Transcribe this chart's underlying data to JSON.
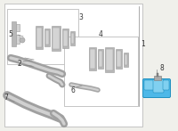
{
  "bg_color": "#f0f0eb",
  "white": "#ffffff",
  "border_color": "#bbbbbb",
  "part_gray_dark": "#999999",
  "part_gray_mid": "#b8b8b8",
  "part_gray_light": "#d4d4d4",
  "highlight_blue": "#4db8e8",
  "highlight_blue_dark": "#2090c0",
  "highlight_blue_light": "#80d0f0",
  "line_color": "#888888",
  "text_color": "#333333",
  "figsize": [
    2.0,
    1.47
  ],
  "dpi": 100,
  "xlim": [
    0,
    200
  ],
  "ylim": [
    0,
    147
  ]
}
